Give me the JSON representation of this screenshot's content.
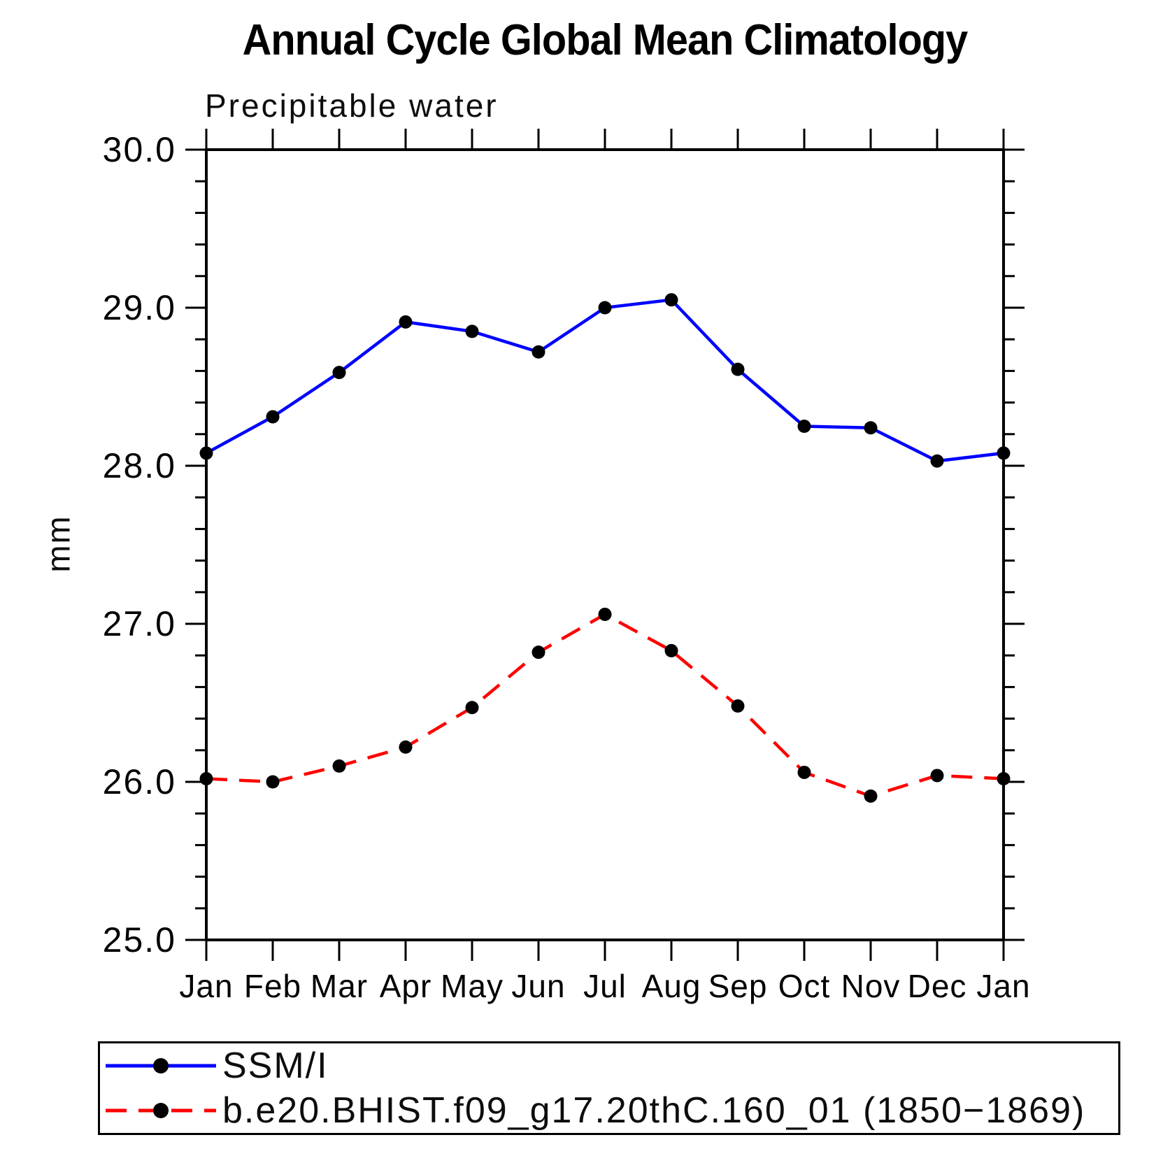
{
  "chart_data": {
    "type": "line",
    "title": "Annual Cycle Global Mean Climatology",
    "subtitle": "Precipitable water",
    "ylabel": "mm",
    "xlabel": "",
    "categories": [
      "Jan",
      "Feb",
      "Mar",
      "Apr",
      "May",
      "Jun",
      "Jul",
      "Aug",
      "Sep",
      "Oct",
      "Nov",
      "Dec",
      "Jan"
    ],
    "ylim": [
      25.0,
      30.0
    ],
    "ytick_step": 1.0,
    "yminor_step": 0.2,
    "ytick_labels": [
      "25.0",
      "26.0",
      "27.0",
      "28.0",
      "29.0",
      "30.0"
    ],
    "grid": false,
    "legend_position": "bottom",
    "series": [
      {
        "name": "SSM/I",
        "color": "#0000ff",
        "line_style": "solid",
        "marker": "circle",
        "marker_color": "#000000",
        "values": [
          28.08,
          28.31,
          28.59,
          28.91,
          28.85,
          28.72,
          29.0,
          29.05,
          28.61,
          28.25,
          28.24,
          28.03,
          28.08
        ]
      },
      {
        "name": "b.e20.BHIST.f09_g17.20thC.160_01 (1850−1869)",
        "color": "#ff0000",
        "line_style": "dashed",
        "marker": "circle",
        "marker_color": "#000000",
        "values": [
          26.02,
          26.0,
          26.1,
          26.22,
          26.47,
          26.82,
          27.06,
          26.83,
          26.48,
          26.06,
          25.91,
          26.04,
          26.02
        ]
      }
    ]
  },
  "colors": {
    "background": "#ffffff",
    "axis": "#000000",
    "text": "#000000",
    "series_blue": "#0000ff",
    "series_red": "#ff0000"
  }
}
